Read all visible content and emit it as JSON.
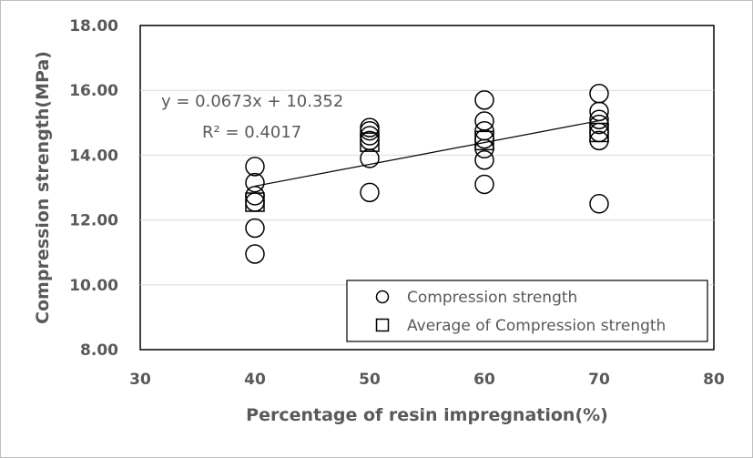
{
  "chart_data": {
    "type": "scatter",
    "xlabel": "Percentage of resin impregnation(%)",
    "ylabel": "Compression strength(MPa)",
    "xlim": [
      30,
      80
    ],
    "ylim": [
      8,
      18
    ],
    "x_ticks": [
      "30",
      "40",
      "50",
      "60",
      "70",
      "80"
    ],
    "y_ticks": [
      "8.00",
      "10.00",
      "12.00",
      "14.00",
      "16.00",
      "18.00"
    ],
    "grid": "horizontal",
    "legend_position": "bottom-right",
    "series": [
      {
        "name": "Compression strength",
        "marker": "circle",
        "points": [
          [
            40,
            13.65
          ],
          [
            40,
            13.15
          ],
          [
            40,
            12.75
          ],
          [
            40,
            12.55
          ],
          [
            40,
            11.75
          ],
          [
            40,
            10.95
          ],
          [
            50,
            14.85
          ],
          [
            50,
            14.75
          ],
          [
            50,
            14.6
          ],
          [
            50,
            14.45
          ],
          [
            50,
            13.9
          ],
          [
            50,
            12.85
          ],
          [
            60,
            15.7
          ],
          [
            60,
            15.05
          ],
          [
            60,
            14.75
          ],
          [
            60,
            14.5
          ],
          [
            60,
            14.2
          ],
          [
            60,
            13.85
          ],
          [
            60,
            13.1
          ],
          [
            70,
            15.9
          ],
          [
            70,
            15.35
          ],
          [
            70,
            15.1
          ],
          [
            70,
            14.95
          ],
          [
            70,
            14.7
          ],
          [
            70,
            14.45
          ],
          [
            70,
            12.5
          ]
        ]
      },
      {
        "name": "Average of Compression strength",
        "marker": "square",
        "points": [
          [
            40,
            12.55
          ],
          [
            50,
            14.4
          ],
          [
            60,
            14.45
          ],
          [
            70,
            14.7
          ]
        ]
      }
    ],
    "trendline": {
      "slope": 0.0673,
      "intercept": 10.352,
      "x_range": [
        40,
        70
      ],
      "equation": "y = 0.0673x + 10.352",
      "r_squared": "R² = 0.4017"
    },
    "colors": {
      "marker": "#000000",
      "grid": "#d9d9d9",
      "text": "#595959"
    }
  }
}
